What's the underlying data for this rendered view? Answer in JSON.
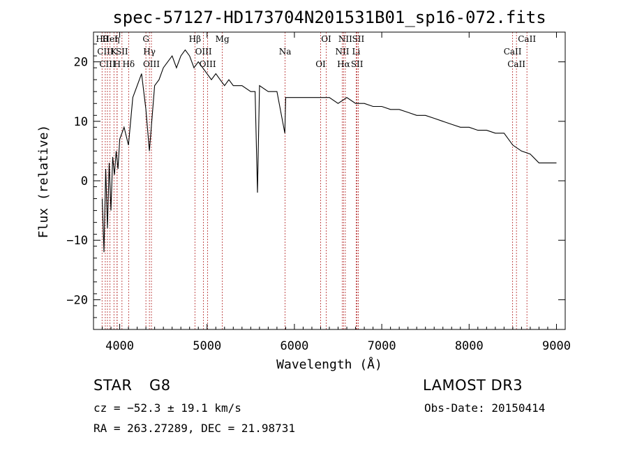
{
  "chart_data": {
    "type": "line",
    "title": "spec-57127-HD173704N201531B01_sp16-072.fits",
    "xlabel": "Wavelength (Å)",
    "ylabel": "Flux (relative)",
    "xlim": [
      3700,
      9100
    ],
    "ylim": [
      -25,
      25
    ],
    "xticks": [
      4000,
      5000,
      6000,
      7000,
      8000,
      9000
    ],
    "yticks": [
      -20,
      -10,
      0,
      10,
      20
    ],
    "ytick_labels": [
      "−20",
      "−10",
      "0",
      "10",
      "20"
    ],
    "grid": false,
    "line_color": "#000000",
    "marker_color": "#b22222",
    "series": [
      {
        "x": [
          3800,
          3820,
          3840,
          3860,
          3880,
          3900,
          3920,
          3940,
          3960,
          3980,
          4000,
          4050,
          4100,
          4150,
          4200,
          4250,
          4300,
          4340,
          4400,
          4450,
          4500,
          4550,
          4600,
          4650,
          4700,
          4750,
          4800,
          4850,
          4900,
          4950,
          5000,
          5050,
          5100,
          5150,
          5200,
          5250,
          5300,
          5400,
          5500,
          5550,
          5577,
          5600,
          5700,
          5800,
          5890,
          5900,
          6000,
          6100,
          6200,
          6300,
          6400,
          6500,
          6600,
          6700,
          6800,
          6900,
          7000,
          7100,
          7200,
          7300,
          7400,
          7500,
          7600,
          7700,
          7800,
          7900,
          8000,
          8100,
          8200,
          8300,
          8400,
          8500,
          8600,
          8700,
          8800,
          8900,
          9000
        ],
        "y": [
          -3,
          -12,
          2,
          -8,
          3,
          -5,
          4,
          1,
          5,
          2,
          7,
          9,
          6,
          14,
          16,
          18,
          12,
          5,
          16,
          17,
          19,
          20,
          21,
          19,
          21,
          22,
          21,
          19,
          20,
          19,
          18,
          17,
          18,
          17,
          16,
          17,
          16,
          16,
          15,
          15,
          -2,
          16,
          15,
          15,
          8,
          14,
          14,
          14,
          14,
          14,
          14,
          13,
          14,
          13,
          13,
          12.5,
          12.5,
          12,
          12,
          11.5,
          11,
          11,
          10.5,
          10,
          9.5,
          9,
          9,
          8.5,
          8.5,
          8,
          8,
          6,
          5,
          4.5,
          3,
          3,
          3
        ]
      }
    ],
    "lines": [
      {
        "x": 3798,
        "label": "Hθ"
      },
      {
        "x": 3835,
        "label": "CIII"
      },
      {
        "x": 3860,
        "label": "CIII"
      },
      {
        "x": 3889,
        "label": "HeI"
      },
      {
        "x": 3934,
        "label": "K"
      },
      {
        "x": 3970,
        "label": "H"
      },
      {
        "x": 3970,
        "label": "η"
      },
      {
        "x": 4026,
        "label": "SII"
      },
      {
        "x": 4102,
        "label": "Hδ"
      },
      {
        "x": 4300,
        "label": "G"
      },
      {
        "x": 4340,
        "label": "Hγ"
      },
      {
        "x": 4363,
        "label": "OIII"
      },
      {
        "x": 4861,
        "label": "Hβ"
      },
      {
        "x": 4959,
        "label": "OIII"
      },
      {
        "x": 5007,
        "label": "OIII"
      },
      {
        "x": 5175,
        "label": "Mg"
      },
      {
        "x": 5893,
        "label": "Na"
      },
      {
        "x": 6300,
        "label": "OI"
      },
      {
        "x": 6364,
        "label": "OI"
      },
      {
        "x": 6548,
        "label": "NII"
      },
      {
        "x": 6563,
        "label": "Hα"
      },
      {
        "x": 6583,
        "label": "NII"
      },
      {
        "x": 6707,
        "label": "Li"
      },
      {
        "x": 6717,
        "label": "SII"
      },
      {
        "x": 6731,
        "label": "SII"
      },
      {
        "x": 8498,
        "label": "CaII"
      },
      {
        "x": 8542,
        "label": "CaII"
      },
      {
        "x": 8662,
        "label": "CaII"
      }
    ]
  },
  "info": {
    "object_class": "STAR",
    "subclass": "G8",
    "survey": "LAMOST DR3",
    "cz": "cz = −52.3 ± 19.1 km/s",
    "obs_date": "Obs-Date: 20150414",
    "coords": "RA = 263.27289, DEC =  21.98731"
  }
}
